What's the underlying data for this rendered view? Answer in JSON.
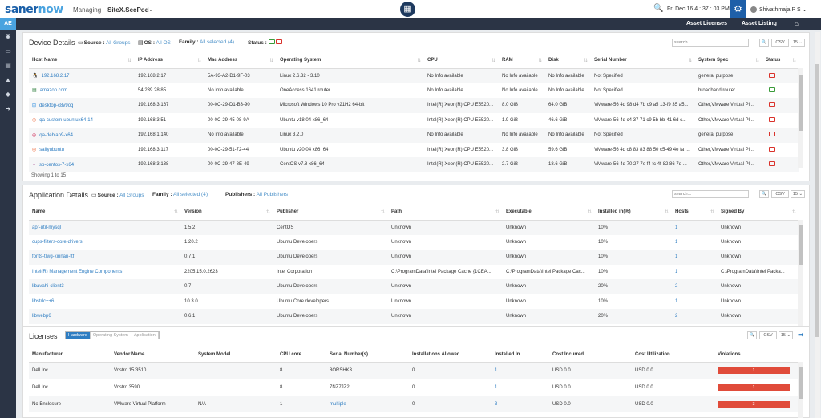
{
  "header": {
    "logo_a": "saner",
    "logo_b": "now",
    "managing_label": "Managing",
    "site": "SiteX.SecPod",
    "date": "Fri Dec 16  4 : 37 : 03 PM",
    "user": "Shivathmaja P S"
  },
  "subnav": {
    "ae": "AE",
    "asset_licenses": "Asset Licenses",
    "asset_listing": "Asset Listing"
  },
  "device": {
    "title": "Device Details",
    "source_label": "Source :",
    "source_value": "All Groups",
    "os_label": "OS :",
    "os_value": "All OS",
    "family_label": "Family :",
    "family_value": "All selected (4)",
    "status_label": "Status :",
    "search_placeholder": "search...",
    "csv": "CSV",
    "page_size": "15",
    "columns": [
      "Host Name",
      "IP Address",
      "Mac Address",
      "Operating System",
      "CPU",
      "RAM",
      "Disk",
      "Serial Number",
      "System Spec",
      "Status"
    ],
    "rows": [
      {
        "icon": "linux",
        "host": "192.168.2.17",
        "ip": "192.168.2.17",
        "mac": "5A-93-A2-D1-9F-03",
        "os": "Linux 2.6.32 - 3.10",
        "cpu": "No Info available",
        "ram": "No Info available",
        "disk": "No Info available",
        "serial": "Not Specified",
        "spec": "general purpose",
        "status": "red"
      },
      {
        "icon": "router",
        "host": "amazon.com",
        "ip": "54.239.28.85",
        "mac": "No Info available",
        "os": "OneAccess 1641 router",
        "cpu": "No Info available",
        "ram": "No Info available",
        "disk": "No Info available",
        "serial": "Not Specified",
        "spec": "broadband router",
        "status": "green"
      },
      {
        "icon": "windows",
        "host": "desktop-c8v9og",
        "ip": "192.168.3.167",
        "mac": "00-0C-29-D1-B3-90",
        "os": "Microsoft Windows 10 Pro v21H2 64-bit",
        "cpu": "Intel(R) Xeon(R) CPU E5520...",
        "ram": "8.0 GiB",
        "disk": "64.0 GiB",
        "serial": "VMware-56 4d 98 d4 7b c9 a5 13-f9 35 a5...",
        "spec": "Other,VMware Virtual Pl...",
        "status": "red"
      },
      {
        "icon": "ubuntu",
        "host": "qa-custom-ubuntux64-14",
        "ip": "192.168.3.51",
        "mac": "00-0C-29-45-08-9A",
        "os": "Ubuntu v18.04 x86_64",
        "cpu": "Intel(R) Xeon(R) CPU E5520...",
        "ram": "1.9 GiB",
        "disk": "46.6 GiB",
        "serial": "VMware-56 4d c4 37 71 c9 5b bb-41 6d c...",
        "spec": "Other,VMware Virtual Pl...",
        "status": "red"
      },
      {
        "icon": "debian",
        "host": "qa-debian9-x64",
        "ip": "192.168.1.140",
        "mac": "No Info available",
        "os": "Linux 3.2.0",
        "cpu": "No Info available",
        "ram": "No Info available",
        "disk": "No Info available",
        "serial": "Not Specified",
        "spec": "general purpose",
        "status": "red"
      },
      {
        "icon": "ubuntu",
        "host": "saifyubuntu",
        "ip": "192.168.3.117",
        "mac": "00-0C-29-51-72-44",
        "os": "Ubuntu v20.04 x86_64",
        "cpu": "Intel(R) Xeon(R) CPU E5520...",
        "ram": "3.8 GiB",
        "disk": "59.6 GiB",
        "serial": "VMware-56 4d c8 83 83 88 50 c5-49 4e fa ...",
        "spec": "Other,VMware Virtual Pl...",
        "status": "red"
      },
      {
        "icon": "centos",
        "host": "sp-centos-7-x64",
        "ip": "192.168.3.138",
        "mac": "00-0C-29-47-8E-49",
        "os": "CentOS v7.8 x86_64",
        "cpu": "Intel(R) Xeon(R) CPU E5520...",
        "ram": "2.7 GiB",
        "disk": "18.6 GiB",
        "serial": "VMware-56 4d 70 27 7e f4 fc 4f-82 86 7d ...",
        "spec": "Other,VMware Virtual Pl...",
        "status": "red"
      }
    ],
    "showing": "Showing 1 to 15"
  },
  "app": {
    "title": "Application Details",
    "source_label": "Source :",
    "source_value": "All Groups",
    "family_label": "Family :",
    "family_value": "All selected (4)",
    "publishers_label": "Publishers :",
    "publishers_value": "All Publishers",
    "search_placeholder": "search...",
    "csv": "CSV",
    "page_size": "15",
    "columns": [
      "Name",
      "Version",
      "Publisher",
      "Path",
      "Executable",
      "Installed in(%)",
      "Hosts",
      "Signed By"
    ],
    "rows": [
      {
        "name": "apr-util-mysql",
        "version": "1.5.2",
        "publisher": "CentOS",
        "path": "Unknown",
        "exe": "Unknown",
        "inst": "10%",
        "hosts": "1",
        "signed": "Unknown"
      },
      {
        "name": "cups-filters-core-drivers",
        "version": "1.20.2",
        "publisher": "Ubuntu Developers",
        "path": "Unknown",
        "exe": "Unknown",
        "inst": "10%",
        "hosts": "1",
        "signed": "Unknown"
      },
      {
        "name": "fonts-tlwg-kinnari-ttf",
        "version": "0.7.1",
        "publisher": "Ubuntu Developers",
        "path": "Unknown",
        "exe": "Unknown",
        "inst": "10%",
        "hosts": "1",
        "signed": "Unknown"
      },
      {
        "name": "Intel(R) Management Engine Components",
        "version": "2205.15.0.2623",
        "publisher": "Intel Corporation",
        "path": "C:\\ProgramData\\Intel Package Cache {1CEA...",
        "exe": "C:\\ProgramData\\Intel Package Cac...",
        "inst": "10%",
        "hosts": "1",
        "signed": "C:\\ProgramData\\Intel Packa..."
      },
      {
        "name": "libavahi-client3",
        "version": "0.7",
        "publisher": "Ubuntu Developers",
        "path": "Unknown",
        "exe": "Unknown",
        "inst": "20%",
        "hosts": "2",
        "signed": "Unknown"
      },
      {
        "name": "libstdc++6",
        "version": "10.3.0",
        "publisher": "Ubuntu Core developers",
        "path": "Unknown",
        "exe": "Unknown",
        "inst": "10%",
        "hosts": "1",
        "signed": "Unknown"
      },
      {
        "name": "libwebp6",
        "version": "0.6.1",
        "publisher": "Ubuntu Developers",
        "path": "Unknown",
        "exe": "Unknown",
        "inst": "20%",
        "hosts": "2",
        "signed": "Unknown"
      }
    ]
  },
  "licenses": {
    "title": "Licenses",
    "tabs": [
      "Hardware",
      "Operating System",
      "Application"
    ],
    "csv": "CSV",
    "page_size": "15",
    "columns": [
      "Manufacturer",
      "Vendor Name",
      "System Model",
      "CPU core",
      "Serial Number(s)",
      "Installations Allowed",
      "Installed In",
      "Cost Incurred",
      "Cost Utilization",
      "Violations"
    ],
    "rows": [
      {
        "mfr": "Dell Inc.",
        "vendor": "Vostro 15 3510",
        "model": "",
        "core": "8",
        "serial": "8ORSHK3",
        "allowed": "0",
        "installed": "1",
        "cost": "USD 0.0",
        "util": "USD 0.0",
        "viol": "1"
      },
      {
        "mfr": "Dell Inc.",
        "vendor": "Vostro 3590",
        "model": "",
        "core": "8",
        "serial": "7NZ7JZ2",
        "allowed": "0",
        "installed": "1",
        "cost": "USD 0.0",
        "util": "USD 0.0",
        "viol": "1"
      },
      {
        "mfr": "No Enclosure",
        "vendor": "VMware Virtual Platform",
        "model": "N/A",
        "core": "1",
        "serial": "multiple",
        "allowed": "0",
        "installed": "3",
        "cost": "USD 0.0",
        "util": "USD 0.0",
        "viol": "3"
      }
    ]
  }
}
